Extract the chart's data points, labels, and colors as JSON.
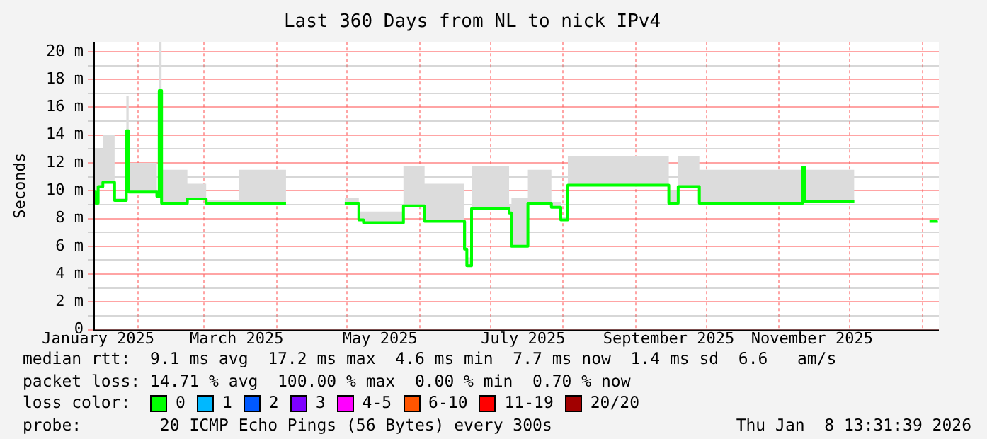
{
  "chart_data": {
    "type": "step",
    "title": "Last 360 Days from NL to nick IPv4",
    "ylabel": "Seconds",
    "x": [
      "2025-01-13",
      "2025-01-14",
      "2025-01-15",
      "2025-01-17",
      "2025-01-22",
      "2025-01-27",
      "2025-01-28",
      "2025-02-09",
      "2025-02-10",
      "2025-02-11",
      "2025-02-22",
      "2025-03-02",
      "2025-03-16",
      "2025-04-05",
      "2025-04-15",
      "2025-04-30",
      "2025-05-06",
      "2025-05-08",
      "2025-05-25",
      "2025-06-03",
      "2025-06-20",
      "2025-06-21",
      "2025-06-23",
      "2025-07-09",
      "2025-07-10",
      "2025-07-17",
      "2025-07-27",
      "2025-07-31",
      "2025-08-03",
      "2025-09-15",
      "2025-09-19",
      "2025-09-28",
      "2025-11-11",
      "2025-11-12",
      "2025-12-03",
      "2025-12-15",
      "2026-01-04",
      "2026-01-07"
    ],
    "series": [
      {
        "color": "#00ff00",
        "values": [
          9.9,
          9.1,
          10.3,
          10.6,
          9.3,
          14.3,
          9.9,
          9.6,
          17.2,
          9.1,
          9.4,
          9.1,
          9.1,
          9.1,
          null,
          9.1,
          7.9,
          7.7,
          8.9,
          7.8,
          5.8,
          4.6,
          8.7,
          8.4,
          6.0,
          9.1,
          8.8,
          7.9,
          10.4,
          9.1,
          10.3,
          9.1,
          11.7,
          9.2,
          9.2,
          null,
          7.8,
          7.7
        ],
        "lower": [
          9.9,
          9.1,
          10.3,
          10.6,
          9.3,
          14.3,
          9.9,
          9.6,
          17.2,
          9.1,
          9.4,
          9.1,
          9.1,
          9.1,
          null,
          9.1,
          7.9,
          7.7,
          8.9,
          7.8,
          5.8,
          4.6,
          8.7,
          8.4,
          6.0,
          9.1,
          8.8,
          7.9,
          10.4,
          9.1,
          10.3,
          9.1,
          11.7,
          9.2,
          9.2,
          null,
          null,
          null
        ],
        "upper": [
          13,
          13,
          13,
          14,
          9.5,
          16.8,
          12,
          10,
          20.7,
          11.5,
          10.5,
          9.3,
          11.5,
          11.5,
          null,
          9.5,
          8.5,
          8.5,
          11.8,
          10.5,
          7.8,
          5.2,
          11.8,
          9,
          9.5,
          11.5,
          9.2,
          8.1,
          12.5,
          10,
          12.5,
          11.5,
          11.8,
          11.5,
          9.4,
          null,
          null,
          null
        ]
      },
      {
        "name": "0",
        "color": "#00ff00",
        "values": [
          null,
          null,
          null,
          null,
          null,
          null,
          null,
          null,
          null,
          null,
          null,
          null,
          null,
          null,
          null,
          null,
          null,
          null,
          null,
          null,
          null,
          null,
          null,
          null,
          null,
          null,
          null,
          null,
          null,
          null,
          null,
          null,
          null,
          null,
          null,
          null,
          null,
          null
        ]
      },
      {
        "name": "1",
        "color": "#00b8ff",
        "values": [
          null,
          null,
          null,
          null,
          null,
          null,
          null,
          null,
          null,
          null,
          null,
          null,
          null,
          null,
          null,
          null,
          null,
          null,
          null,
          null,
          null,
          null,
          null,
          null,
          null,
          null,
          null,
          null,
          null,
          null,
          null,
          null,
          null,
          null,
          null,
          null,
          null,
          null
        ]
      },
      {
        "name": "2",
        "color": "#0059ff",
        "values": [
          null,
          null,
          null,
          null,
          null,
          null,
          null,
          null,
          null,
          null,
          null,
          null,
          null,
          null,
          null,
          null,
          null,
          null,
          null,
          null,
          null,
          null,
          null,
          null,
          null,
          null,
          null,
          null,
          null,
          null,
          null,
          null,
          null,
          null,
          null,
          null,
          null,
          null
        ]
      },
      {
        "name": "3",
        "color": "#7e00ff",
        "values": [
          null,
          null,
          null,
          null,
          null,
          null,
          null,
          null,
          null,
          null,
          null,
          null,
          null,
          null,
          null,
          null,
          null,
          null,
          null,
          null,
          null,
          null,
          null,
          null,
          null,
          null,
          null,
          null,
          null,
          null,
          null,
          null,
          null,
          null,
          null,
          null,
          null,
          null
        ]
      },
      {
        "name": "4-5",
        "color": "#ff00ff",
        "values": [
          null,
          null,
          null,
          null,
          null,
          null,
          null,
          null,
          null,
          null,
          null,
          null,
          null,
          null,
          null,
          null,
          null,
          null,
          null,
          null,
          null,
          null,
          null,
          null,
          null,
          null,
          null,
          null,
          null,
          null,
          null,
          null,
          null,
          null,
          null,
          null,
          null,
          null
        ]
      },
      {
        "name": "6-10",
        "color": "#ff5500",
        "values": [
          null,
          null,
          null,
          null,
          null,
          null,
          null,
          null,
          null,
          null,
          null,
          null,
          null,
          null,
          null,
          null,
          null,
          null,
          null,
          null,
          null,
          null,
          null,
          null,
          null,
          null,
          null,
          null,
          null,
          null,
          null,
          null,
          null,
          null,
          null,
          null,
          null,
          null
        ]
      },
      {
        "name": "11-19",
        "color": "#ff0000",
        "values": [
          null,
          null,
          null,
          null,
          null,
          null,
          null,
          null,
          null,
          null,
          null,
          null,
          null,
          null,
          null,
          null,
          null,
          null,
          null,
          null,
          null,
          null,
          null,
          null,
          null,
          null,
          null,
          null,
          null,
          null,
          null,
          null,
          null,
          null,
          null,
          null,
          null,
          null
        ]
      },
      {
        "name": "20/20",
        "color": "#a10000",
        "values": [
          null,
          null,
          null,
          null,
          null,
          null,
          null,
          null,
          null,
          null,
          null,
          null,
          null,
          null,
          null,
          null,
          null,
          null,
          null,
          null,
          null,
          null,
          null,
          null,
          null,
          null,
          null,
          null,
          null,
          null,
          null,
          null,
          null,
          null,
          null,
          null,
          null,
          null
        ]
      }
    ],
    "legend": "bottom",
    "legend_title": "loss color:",
    "grid": true,
    "xlim": [
      "2025-01-13",
      "2026-01-08"
    ],
    "xticks": [
      {
        "value": "2025-01-15",
        "label": "January 2025"
      },
      {
        "value": "2025-02-01",
        "label": null
      },
      {
        "value": "2025-03-01",
        "label": null
      },
      {
        "value": "2025-03-15",
        "label": "March 2025"
      },
      {
        "value": "2025-04-01",
        "label": null
      },
      {
        "value": "2025-05-01",
        "label": null
      },
      {
        "value": "2025-05-15",
        "label": "May 2025"
      },
      {
        "value": "2025-06-01",
        "label": null
      },
      {
        "value": "2025-07-01",
        "label": null
      },
      {
        "value": "2025-07-15",
        "label": "July 2025"
      },
      {
        "value": "2025-08-01",
        "label": null
      },
      {
        "value": "2025-09-01",
        "label": null
      },
      {
        "value": "2025-09-15",
        "label": "September 2025"
      },
      {
        "value": "2025-10-01",
        "label": null
      },
      {
        "value": "2025-11-01",
        "label": null
      },
      {
        "value": "2025-11-15",
        "label": "November 2025"
      },
      {
        "value": "2025-12-01",
        "label": null
      },
      {
        "value": "2026-01-01",
        "label": null
      }
    ],
    "ylim": [
      0,
      20.7
    ],
    "yticks": [
      0,
      {
        "value": 1,
        "label": null
      },
      {
        "value": 2,
        "label": "2 m"
      },
      {
        "value": 3,
        "label": null
      },
      {
        "value": 4,
        "label": "4 m"
      },
      {
        "value": 5,
        "label": null
      },
      {
        "value": 6,
        "label": "6 m"
      },
      {
        "value": 7,
        "label": null
      },
      {
        "value": 8,
        "label": "8 m"
      },
      {
        "value": 9,
        "label": null
      },
      {
        "value": 10,
        "label": "10 m"
      },
      {
        "value": 11,
        "label": null
      },
      {
        "value": 12,
        "label": "12 m"
      },
      {
        "value": 13,
        "label": null
      },
      {
        "value": 14,
        "label": "14 m"
      },
      {
        "value": 15,
        "label": null
      },
      {
        "value": 16,
        "label": "16 m"
      },
      {
        "value": 17,
        "label": null
      },
      {
        "value": 18,
        "label": "18 m"
      },
      {
        "value": 19,
        "label": null
      },
      {
        "value": 20,
        "label": "20 m"
      }
    ],
    "annotations": [
      "median rtt:  9.1 ms avg  17.2 ms max  4.6 ms min  7.7 ms now  1.4 ms sd  6.6   am/s",
      "packet loss: 14.71 % avg  100.00 % max  0.00 % min  0.70 % now",
      "probe:        20 ICMP Echo Pings (56 Bytes) every 300s",
      "Thu Jan  8 13:31:39 2026"
    ]
  }
}
